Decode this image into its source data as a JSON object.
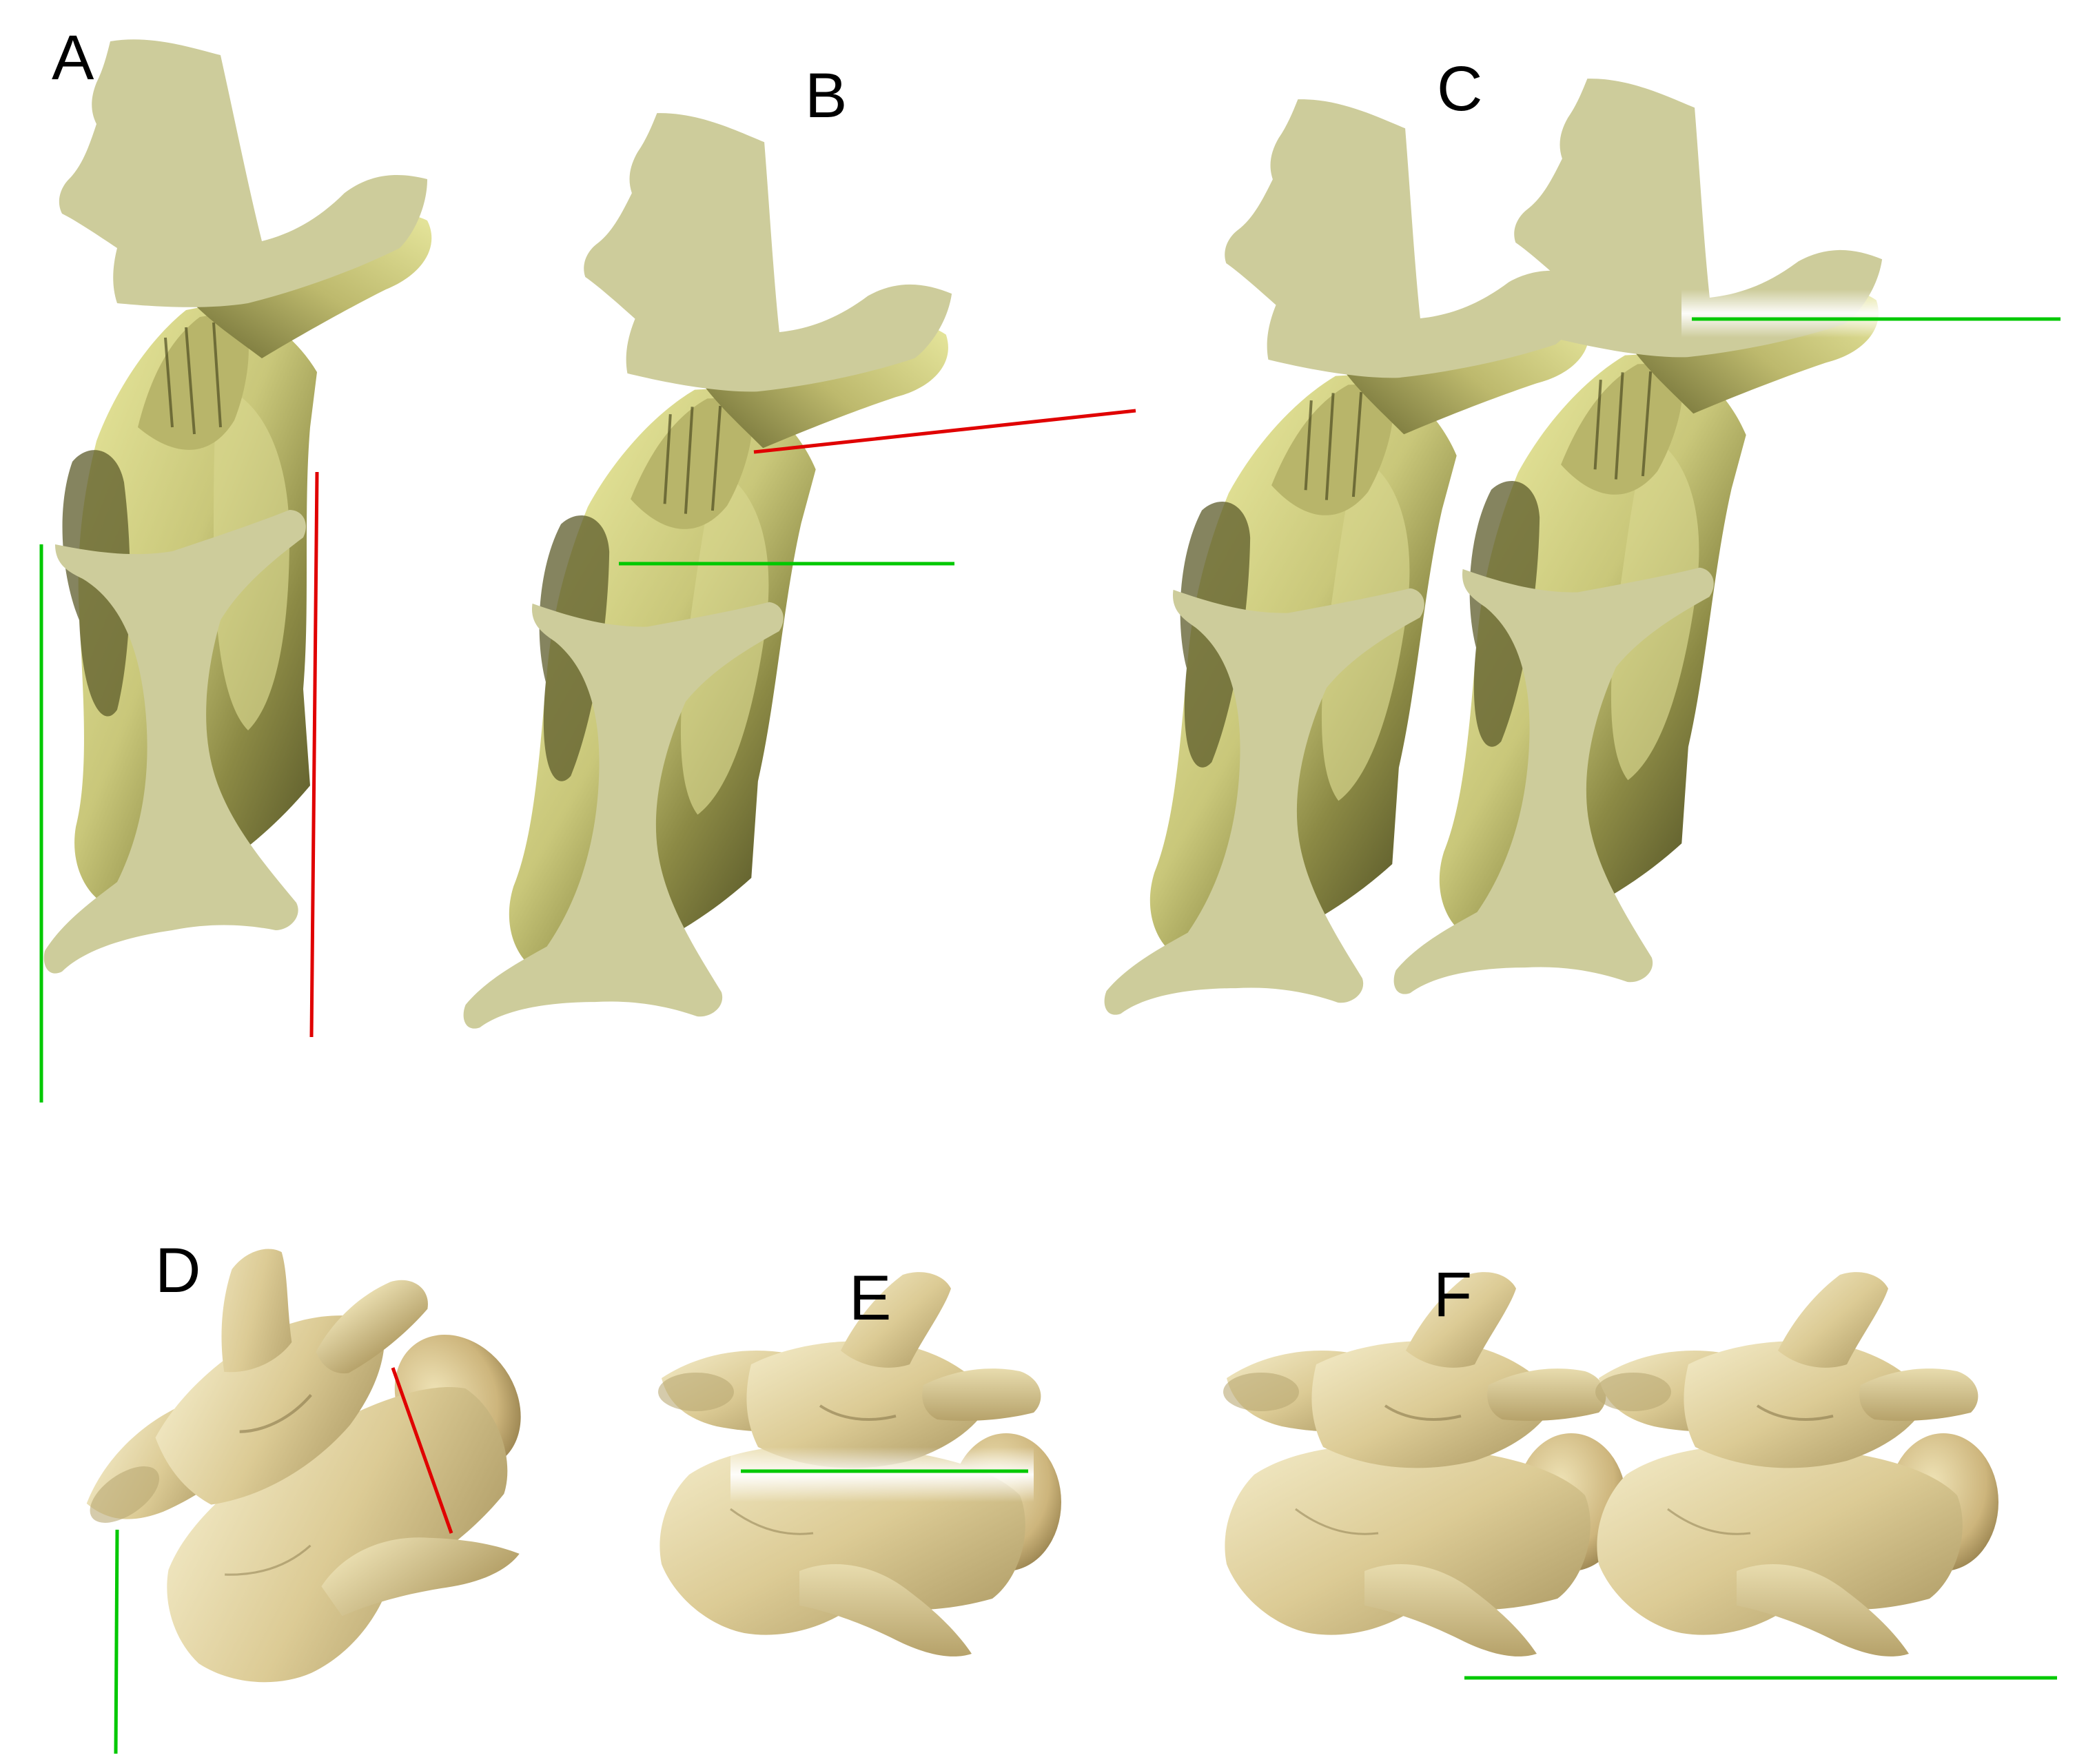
{
  "figure": {
    "panel_labels": {
      "A": "A",
      "B": "B",
      "C": "C",
      "D": "D",
      "E": "E",
      "F": "F"
    },
    "colors": {
      "cut_surface": "#cdcc9b",
      "bone_model_light": "#e3e39a",
      "bone_model_mid": "#a9a65c",
      "bone_model_dark": "#5a5a2a",
      "bone_photo_light": "#efe6bf",
      "bone_photo_mid": "#d9c992",
      "bone_photo_dark": "#9e8b58",
      "guide_green": "#00c800",
      "guide_red": "#e00000",
      "background": "#ffffff"
    }
  }
}
